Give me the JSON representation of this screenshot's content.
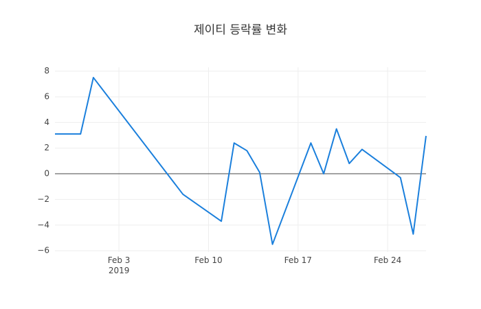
{
  "chart_data": {
    "type": "line",
    "title": "제이티 등락률 변화",
    "x": [
      "2019-01-29",
      "2019-01-31",
      "2019-02-01",
      "2019-02-08",
      "2019-02-11",
      "2019-02-12",
      "2019-02-13",
      "2019-02-14",
      "2019-02-15",
      "2019-02-18",
      "2019-02-19",
      "2019-02-20",
      "2019-02-21",
      "2019-02-22",
      "2019-02-25",
      "2019-02-26",
      "2019-02-27"
    ],
    "series": [
      {
        "color": "#1a7fdc",
        "values": [
          3.1,
          3.1,
          7.5,
          -1.6,
          -3.7,
          2.4,
          1.8,
          0.1,
          -5.5,
          2.4,
          0,
          3.5,
          0.8,
          1.9,
          -0.3,
          -4.7,
          2.95
        ]
      }
    ],
    "xlim": [
      "2019-01-29",
      "2019-02-27"
    ],
    "xticks": [
      {
        "value": "2019-02-03",
        "label": "Feb 3\n2019"
      },
      {
        "value": "2019-02-10",
        "label": "Feb 10"
      },
      {
        "value": "2019-02-17",
        "label": "Feb 17"
      },
      {
        "value": "2019-02-24",
        "label": "Feb 24"
      }
    ],
    "ylim": [
      -6.1,
      8.3
    ],
    "yticks": [
      {
        "value": -6,
        "label": "−6"
      },
      {
        "value": -4,
        "label": "−4"
      },
      {
        "value": -2,
        "label": "−2"
      },
      0,
      2,
      4,
      6,
      8
    ],
    "grid": true
  }
}
